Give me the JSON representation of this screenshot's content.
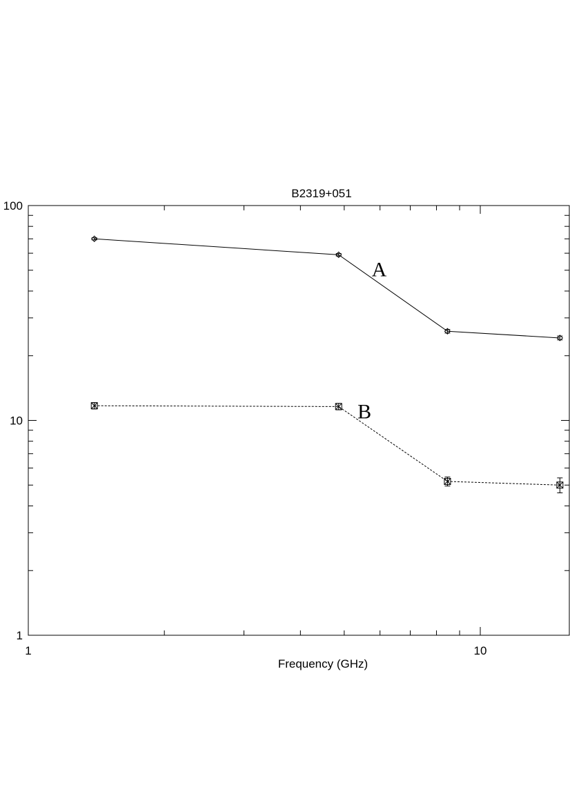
{
  "chart_data": {
    "type": "line",
    "title": "B2319+051",
    "xlabel": "Frequency (GHz)",
    "ylabel": "",
    "x_scale": "log",
    "y_scale": "log",
    "xlim": [
      1,
      15.5
    ],
    "ylim": [
      1,
      100
    ],
    "x_tick_labels": [
      "1",
      "10"
    ],
    "y_tick_labels": [
      "1",
      "10",
      "100"
    ],
    "grid": false,
    "series": [
      {
        "name": "A",
        "line_style": "solid",
        "marker": "diamond",
        "x": [
          1.4,
          4.86,
          8.46,
          15.0
        ],
        "y": [
          70.0,
          59.0,
          26.0,
          24.2
        ],
        "err": [
          0.8,
          0.8,
          0.5,
          0.5
        ]
      },
      {
        "name": "B",
        "line_style": "dotted",
        "marker": "square-cross",
        "x": [
          1.4,
          4.86,
          8.46,
          15.0
        ],
        "y": [
          11.7,
          11.6,
          5.2,
          5.0
        ],
        "err": [
          0.4,
          0.4,
          0.25,
          0.4
        ]
      }
    ]
  }
}
